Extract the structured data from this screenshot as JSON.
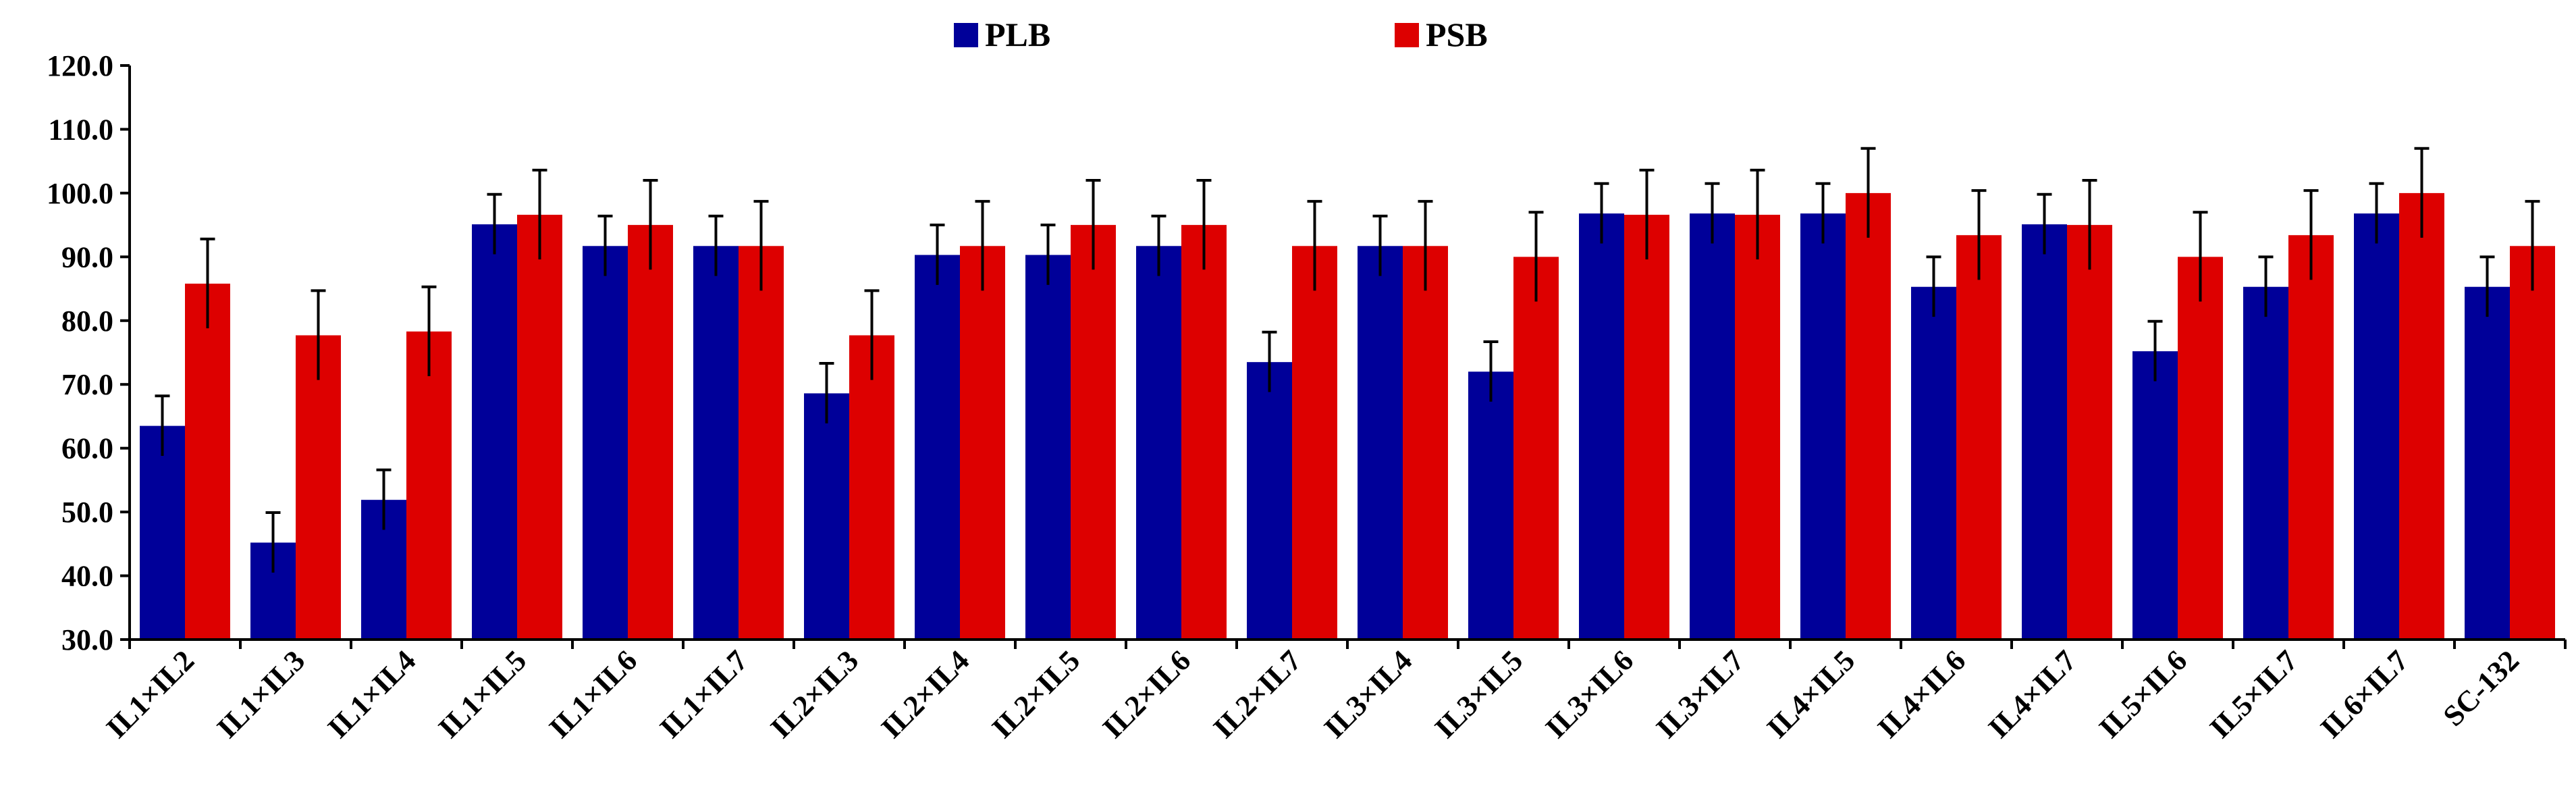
{
  "chart_data": {
    "type": "bar",
    "title": "",
    "xlabel": "",
    "ylabel": "",
    "ylim": [
      30,
      120
    ],
    "yticks": [
      "30.0",
      "40.0",
      "50.0",
      "60.0",
      "70.0",
      "80.0",
      "90.0",
      "100.0",
      "110.0",
      "120.0"
    ],
    "legend_position": "top-center",
    "categories": [
      "IL1×IL2",
      "IL1×IL3",
      "IL1×IL4",
      "IL1×IL5",
      "IL1×IL6",
      "IL1×IL7",
      "IL2×IL3",
      "IL2×IL4",
      "IL2×IL5",
      "IL2×IL6",
      "IL2×IL7",
      "IL3×IL4",
      "IL3×IL5",
      "IL3×IL6",
      "IL3×IL7",
      "IL4×IL5",
      "IL4×IL6",
      "IL4×IL7",
      "IL5×IL6",
      "IL5×IL7",
      "IL6×IL7",
      "SC-132"
    ],
    "series": [
      {
        "name": "PLB",
        "color": "#000099",
        "values": [
          63.5,
          45.2,
          51.9,
          95.1,
          91.7,
          91.7,
          68.6,
          90.3,
          90.3,
          91.7,
          73.5,
          91.7,
          72.0,
          96.8,
          96.8,
          96.8,
          85.3,
          95.1,
          75.2,
          85.3,
          96.8,
          85.3
        ],
        "errors": [
          4.7,
          4.7,
          4.7,
          4.7,
          4.7,
          4.7,
          4.7,
          4.7,
          4.7,
          4.7,
          4.7,
          4.7,
          4.7,
          4.7,
          4.7,
          4.7,
          4.7,
          4.7,
          4.7,
          4.7,
          4.7,
          4.7
        ]
      },
      {
        "name": "PSB",
        "color": "#dd0000",
        "values": [
          85.8,
          77.7,
          78.3,
          96.6,
          95.0,
          91.7,
          77.7,
          91.7,
          95.0,
          95.0,
          91.7,
          91.7,
          90.0,
          96.6,
          96.6,
          100.0,
          93.4,
          95.0,
          90.0,
          93.4,
          100.0,
          91.7
        ],
        "errors": [
          7.0,
          7.0,
          7.0,
          7.0,
          7.0,
          7.0,
          7.0,
          7.0,
          7.0,
          7.0,
          7.0,
          7.0,
          7.0,
          7.0,
          7.0,
          7.0,
          7.0,
          7.0,
          7.0,
          7.0,
          7.0,
          7.0
        ]
      }
    ]
  }
}
